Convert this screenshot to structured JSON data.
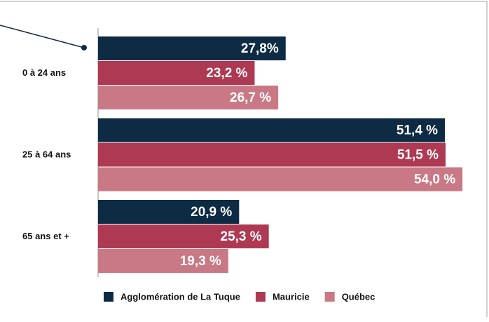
{
  "chart_data": {
    "type": "hbar",
    "categories": [
      "0 à 24 ans",
      "25 à 64 ans",
      "65 ans et +"
    ],
    "series": [
      {
        "name": "Agglomération de La Tuque",
        "color": "#0e2b44",
        "values": [
          27.8,
          51.4,
          20.9
        ],
        "value_labels": [
          "27,8%",
          "51,4 %",
          "20,9 %"
        ]
      },
      {
        "name": "Mauricie",
        "color": "#ae3953",
        "values": [
          23.2,
          51.5,
          25.3
        ],
        "value_labels": [
          "23,2 %",
          "51,5 %",
          "25,3 %"
        ]
      },
      {
        "name": "Québec",
        "color": "#c97985",
        "values": [
          26.7,
          54.0,
          19.3
        ],
        "value_labels": [
          "26,7 %",
          "54,0 %",
          "19,3 %"
        ]
      }
    ],
    "xlim": [
      0,
      57
    ],
    "legend": "bottom"
  }
}
